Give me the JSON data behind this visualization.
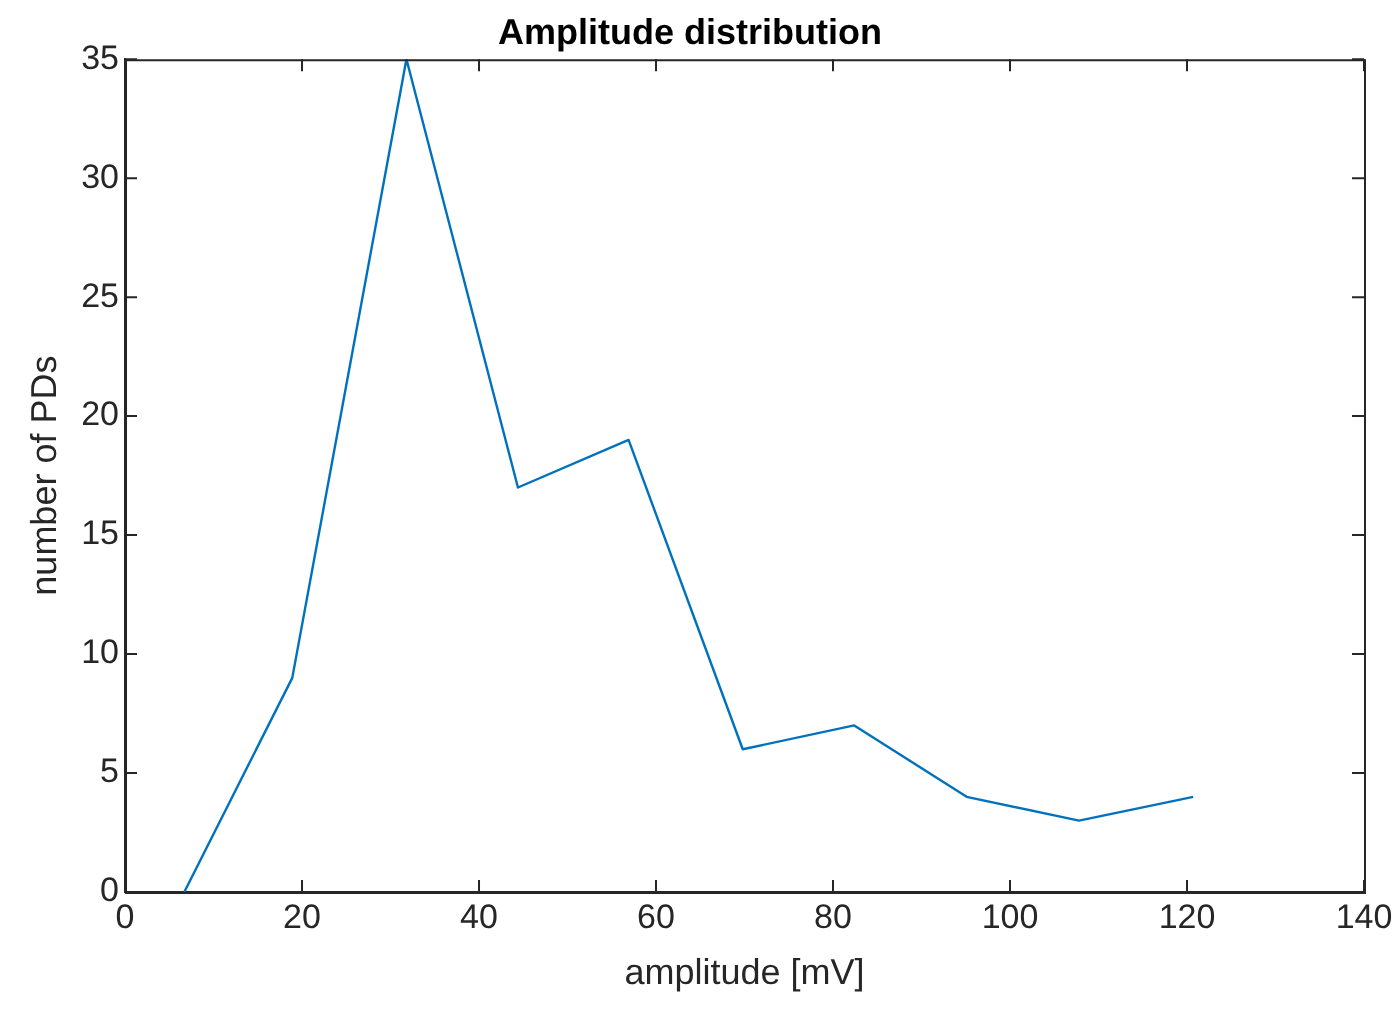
{
  "chart_data": {
    "type": "line",
    "title": "Amplitude distribution",
    "xlabel": "amplitude [mV]",
    "ylabel": "number of PDs",
    "x": [
      6.7,
      18.9,
      31.8,
      44.4,
      56.9,
      69.8,
      82.4,
      95.1,
      107.8,
      120.7
    ],
    "series": [
      {
        "color": "#0072bd",
        "values": [
          0,
          9,
          35,
          17,
          19,
          6,
          7,
          4,
          3,
          4
        ]
      }
    ],
    "xlim": [
      0,
      140
    ],
    "xticks": [
      0,
      20,
      40,
      60,
      80,
      100,
      120,
      140
    ],
    "ylim": [
      0,
      35
    ],
    "yticks": [
      0,
      5,
      10,
      15,
      20,
      25,
      30,
      35
    ],
    "grid": false,
    "legend": false,
    "marker": "none",
    "line_style": "solid"
  }
}
